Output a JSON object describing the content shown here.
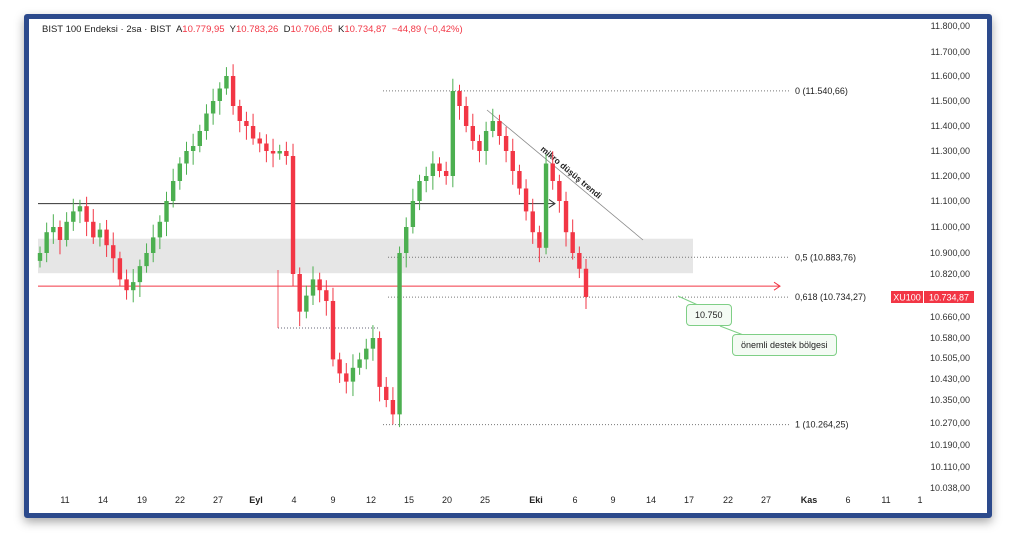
{
  "legend": {
    "title": "BIST 100 Endeksi · 2sa · BIST",
    "open_label": "A",
    "open": "10.779,95",
    "high_label": "Y",
    "high": "10.783,26",
    "low_label": "D",
    "low": "10.706,05",
    "close_label": "K",
    "close": "10.734,87",
    "change": "−44,89 (−0,42%)"
  },
  "colors": {
    "up": "#26a69a",
    "up_alt": "#4caf50",
    "down": "#f23645",
    "frame": "#2c4a8c",
    "zone": "#e6e6e6"
  },
  "price_tag": {
    "symbol": "XU100",
    "value": "10.734,87"
  },
  "callouts": {
    "level": "10.750",
    "zone": "önemli destek bölgesi",
    "trend": "mikro düşüş trendi"
  },
  "chart_data": {
    "type": "candlestick",
    "title": "BIST 100 Endeksi · 2sa · BIST",
    "y_ticks": [
      "11.800,00",
      "11.700,00",
      "11.600,00",
      "11.500,00",
      "11.400,00",
      "11.300,00",
      "11.200,00",
      "11.100,00",
      "11.000,00",
      "10.900,00",
      "10.820,00",
      "10.660,00",
      "10.580,00",
      "10.505,00",
      "10.430,00",
      "10.350,00",
      "10.270,00",
      "10.190,00",
      "10.110,00",
      "10.038,00"
    ],
    "x_ticks": [
      {
        "t": "11"
      },
      {
        "t": "14"
      },
      {
        "t": "19"
      },
      {
        "t": "22"
      },
      {
        "t": "27"
      },
      {
        "t": "Eyl",
        "bold": true
      },
      {
        "t": "4"
      },
      {
        "t": "9"
      },
      {
        "t": "12"
      },
      {
        "t": "15"
      },
      {
        "t": "20"
      },
      {
        "t": "25"
      },
      {
        "t": "Eki",
        "bold": true
      },
      {
        "t": "6"
      },
      {
        "t": "9"
      },
      {
        "t": "14"
      },
      {
        "t": "17"
      },
      {
        "t": "22"
      },
      {
        "t": "27"
      },
      {
        "t": "Kas",
        "bold": true
      },
      {
        "t": "6"
      },
      {
        "t": "11"
      },
      {
        "t": "1"
      }
    ],
    "closes": [
      10900,
      10980,
      11000,
      10950,
      11020,
      11060,
      11080,
      11020,
      10960,
      10990,
      10930,
      10880,
      10800,
      10760,
      10790,
      10850,
      10900,
      10960,
      11020,
      11100,
      11180,
      11250,
      11300,
      11320,
      11380,
      11450,
      11500,
      11550,
      11600,
      11480,
      11420,
      11400,
      11350,
      11330,
      11300,
      11290,
      11300,
      11280,
      10820,
      10680,
      10740,
      10800,
      10760,
      10720,
      10500,
      10450,
      10420,
      10470,
      10500,
      10540,
      10580,
      10400,
      10350,
      10300,
      10900,
      11000,
      11100,
      11180,
      11200,
      11250,
      11220,
      11200,
      11540,
      11480,
      11400,
      11340,
      11300,
      11380,
      11420,
      11360,
      11300,
      11220,
      11150,
      11060,
      10980,
      10920,
      11250,
      11180,
      11100,
      10980,
      10900,
      10840,
      10735
    ],
    "fib_levels": [
      {
        "ratio": "0",
        "value": 11540.66,
        "label": "0 (11.540,66)"
      },
      {
        "ratio": "0.5",
        "value": 10883.76,
        "label": "0,5 (10.883,76)"
      },
      {
        "ratio": "0.618",
        "value": 10734.27,
        "label": "0,618 (10.734,27)"
      },
      {
        "ratio": "1",
        "value": 10264.25,
        "label": "1 (10.264,25)"
      }
    ],
    "resistance_line": 11090,
    "support_line": 10775,
    "support_zone": [
      10823,
      10955
    ],
    "last_price": 10734.87
  }
}
